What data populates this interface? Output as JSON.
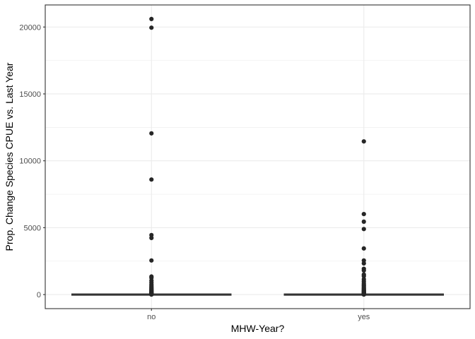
{
  "chart_data": {
    "type": "boxplot",
    "xlabel": "MHW-Year?",
    "ylabel": "Prop. Change Species CPUE vs. Last Year",
    "categories": [
      "no",
      "yes"
    ],
    "ylim": [
      -1050,
      21650
    ],
    "yticks": [
      0,
      5000,
      10000,
      15000,
      20000
    ],
    "ytick_labels": [
      "0",
      "5000",
      "10000",
      "15000",
      "20000"
    ],
    "grid": true,
    "legend": "none",
    "boxes": [
      {
        "category": "no",
        "q1": 0,
        "median": 0,
        "q3": 1
      },
      {
        "category": "yes",
        "q1": 0,
        "median": 0,
        "q3": 1
      }
    ],
    "outliers": [
      {
        "category": "no",
        "values": [
          20600,
          19950,
          12050,
          8600,
          4450,
          4230,
          2550,
          1350,
          1250,
          1050,
          900,
          780,
          680,
          580,
          500,
          430,
          370,
          320,
          270,
          230,
          190,
          160,
          130,
          100,
          75,
          55,
          40,
          30,
          22,
          15,
          10,
          6
        ]
      },
      {
        "category": "yes",
        "values": [
          11450,
          6020,
          5450,
          4900,
          3450,
          2550,
          2330,
          1930,
          1800,
          1500,
          1380,
          1150,
          1000,
          860,
          740,
          640,
          550,
          470,
          400,
          340,
          290,
          245,
          205,
          170,
          140,
          110,
          85,
          65,
          48,
          34,
          24,
          16,
          10,
          6
        ]
      }
    ],
    "colors": {
      "points": "#262626",
      "box": "#333333",
      "grid": "#ebebeb",
      "panel_border": "#333333",
      "background": "#ffffff"
    }
  }
}
